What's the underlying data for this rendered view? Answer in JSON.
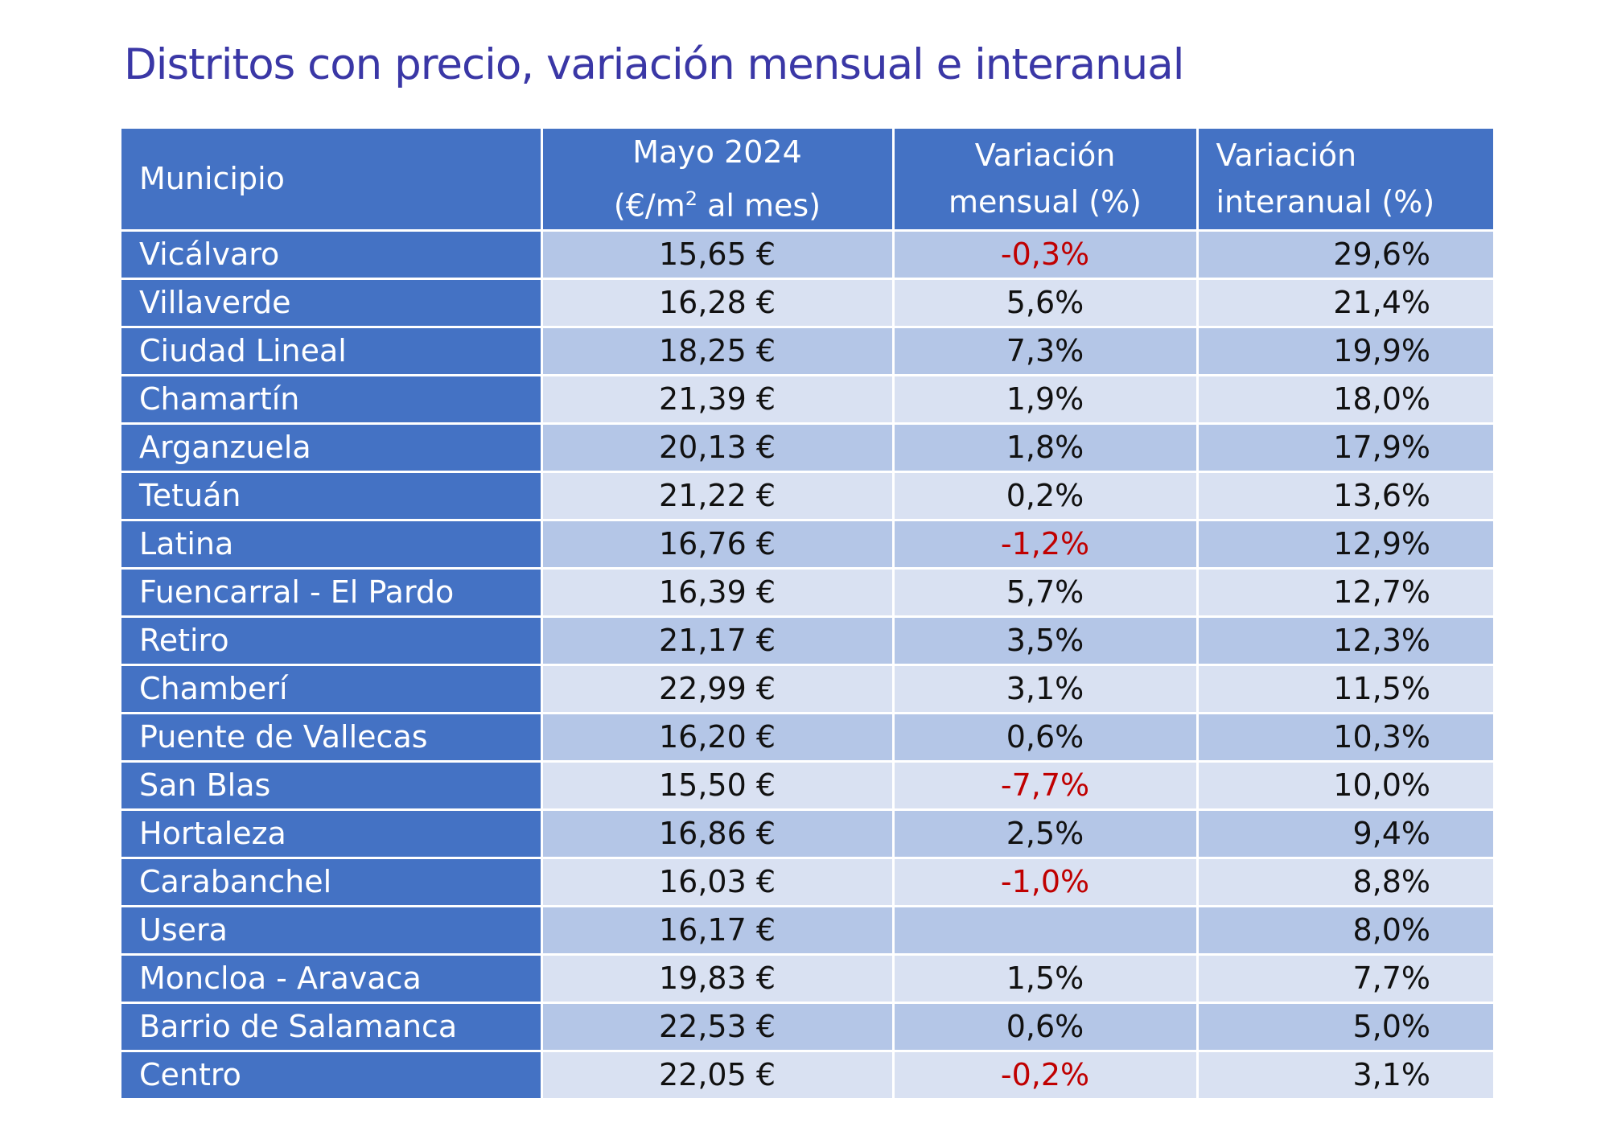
{
  "title": "Distritos con precio, variación mensual e interanual",
  "chart_data": {
    "type": "table",
    "title": "Distritos con precio, variación mensual e interanual",
    "columns": [
      {
        "line1": "Municipio",
        "line2": ""
      },
      {
        "line1": "Mayo 2024",
        "line2_before_sup": "(€/m",
        "line2_sup": "2",
        "line2_after_sup": " al mes)"
      },
      {
        "line1": "Variación",
        "line2": "mensual (%)"
      },
      {
        "line1": "Variación",
        "line2": "interanual (%)"
      }
    ],
    "rows": [
      {
        "name": "Vicálvaro",
        "price": "15,65 €",
        "mom": "-0,3%",
        "yoy": "29,6%"
      },
      {
        "name": "Villaverde",
        "price": "16,28 €",
        "mom": "5,6%",
        "yoy": "21,4%"
      },
      {
        "name": "Ciudad Lineal",
        "price": "18,25 €",
        "mom": "7,3%",
        "yoy": "19,9%"
      },
      {
        "name": "Chamartín",
        "price": "21,39 €",
        "mom": "1,9%",
        "yoy": "18,0%"
      },
      {
        "name": "Arganzuela",
        "price": "20,13 €",
        "mom": "1,8%",
        "yoy": "17,9%"
      },
      {
        "name": "Tetuán",
        "price": "21,22 €",
        "mom": "0,2%",
        "yoy": "13,6%"
      },
      {
        "name": "Latina",
        "price": "16,76 €",
        "mom": "-1,2%",
        "yoy": "12,9%"
      },
      {
        "name": "Fuencarral - El Pardo",
        "price": "16,39 €",
        "mom": "5,7%",
        "yoy": "12,7%"
      },
      {
        "name": "Retiro",
        "price": "21,17 €",
        "mom": "3,5%",
        "yoy": "12,3%"
      },
      {
        "name": "Chamberí",
        "price": "22,99 €",
        "mom": "3,1%",
        "yoy": "11,5%"
      },
      {
        "name": "Puente de Vallecas",
        "price": "16,20 €",
        "mom": "0,6%",
        "yoy": "10,3%"
      },
      {
        "name": "San Blas",
        "price": "15,50 €",
        "mom": "-7,7%",
        "yoy": "10,0%"
      },
      {
        "name": "Hortaleza",
        "price": "16,86 €",
        "mom": "2,5%",
        "yoy": "9,4%"
      },
      {
        "name": "Carabanchel",
        "price": "16,03 €",
        "mom": "-1,0%",
        "yoy": "8,8%"
      },
      {
        "name": "Usera",
        "price": "16,17 €",
        "mom": "",
        "yoy": "8,0%"
      },
      {
        "name": "Moncloa - Aravaca",
        "price": "19,83 €",
        "mom": "1,5%",
        "yoy": "7,7%"
      },
      {
        "name": "Barrio de Salamanca",
        "price": "22,53 €",
        "mom": "0,6%",
        "yoy": "5,0%"
      },
      {
        "name": "Centro",
        "price": "22,05 €",
        "mom": "-0,2%",
        "yoy": "3,1%"
      }
    ]
  },
  "colors": {
    "title": "#3a37a6",
    "header_bg": "#4472c4",
    "row_band_dark": "#b4c6e7",
    "row_band_light": "#d9e1f2",
    "negative": "#c00000"
  }
}
